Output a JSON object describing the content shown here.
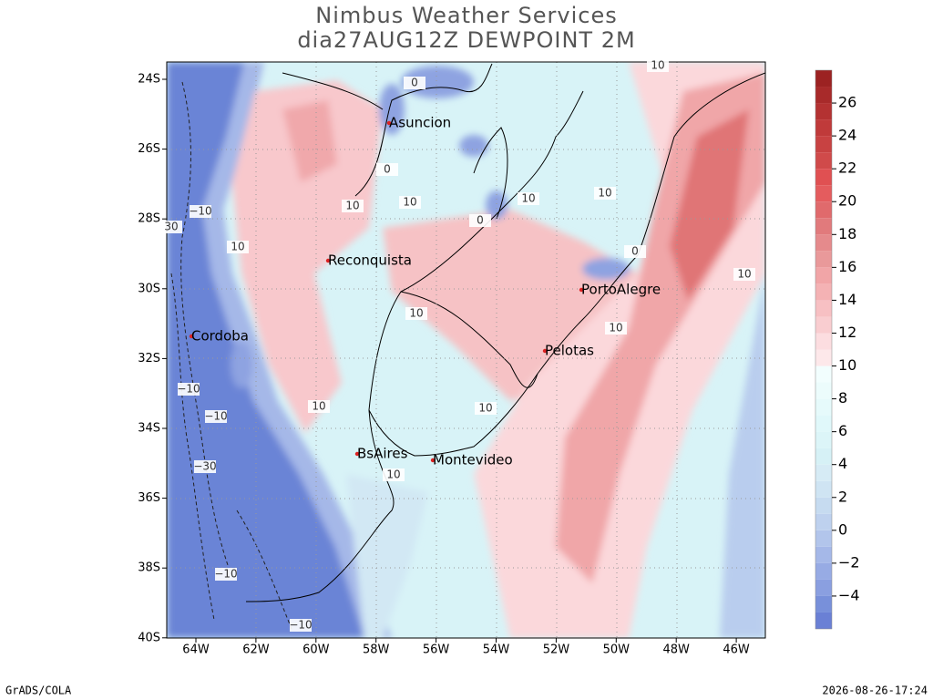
{
  "title": "Nimbus Weather Services",
  "subtitle": "dia27AUG12Z DEWPOINT 2M",
  "map": {
    "lat_labels": [
      "24S",
      "26S",
      "28S",
      "30S",
      "32S",
      "34S",
      "36S",
      "38S",
      "40S"
    ],
    "lon_labels": [
      "64W",
      "62W",
      "60W",
      "58W",
      "56W",
      "54W",
      "52W",
      "50W",
      "48W",
      "46W"
    ]
  },
  "cities": [
    "Asuncion",
    "Reconquista",
    "PortoAlegre",
    "Cordoba",
    "Pelotas",
    "BsAires",
    "Montevideo"
  ],
  "contour_labels": [
    "10",
    "0",
    "0",
    "10",
    "10",
    "10",
    "10",
    "0",
    "−10",
    "30",
    "10",
    "0",
    "10",
    "10",
    "10",
    "−10",
    "−10",
    "10",
    "10",
    "−30",
    "10",
    "−10",
    "−10"
  ],
  "colorbar": {
    "range": [
      -6,
      28
    ],
    "ticks": [
      {
        "value": -4,
        "label": "−4"
      },
      {
        "value": -2,
        "label": "−2"
      },
      0,
      2,
      4,
      6,
      8,
      10,
      12,
      14,
      16,
      18,
      20,
      22,
      24,
      26
    ],
    "colors": [
      "#6a80d5",
      "#7890da",
      "#8a9fe0",
      "#97abe4",
      "#a5b8e8",
      "#b2c5eb",
      "#bed1ee",
      "#c6dbf0",
      "#cfe4f3",
      "#d6ebf5",
      "#d6f1f6",
      "#dcf5f8",
      "#e0f8fa",
      "#e6fafb",
      "#ecfcfc",
      "#f2fefe",
      "#fde8ea",
      "#fcdde0",
      "#f9cdd0",
      "#f7c0c3",
      "#f4b2b4",
      "#f1a5a7",
      "#e9999a",
      "#e58a8c",
      "#e17a7c",
      "#e06a6c",
      "#e45c5e",
      "#e05052",
      "#d04a4a",
      "#c84242",
      "#c03a3a",
      "#b43232",
      "#a82a2a",
      "#9c2222"
    ]
  },
  "footer": {
    "left": "GrADS/COLA",
    "right": "2026-08-26-17:24"
  }
}
